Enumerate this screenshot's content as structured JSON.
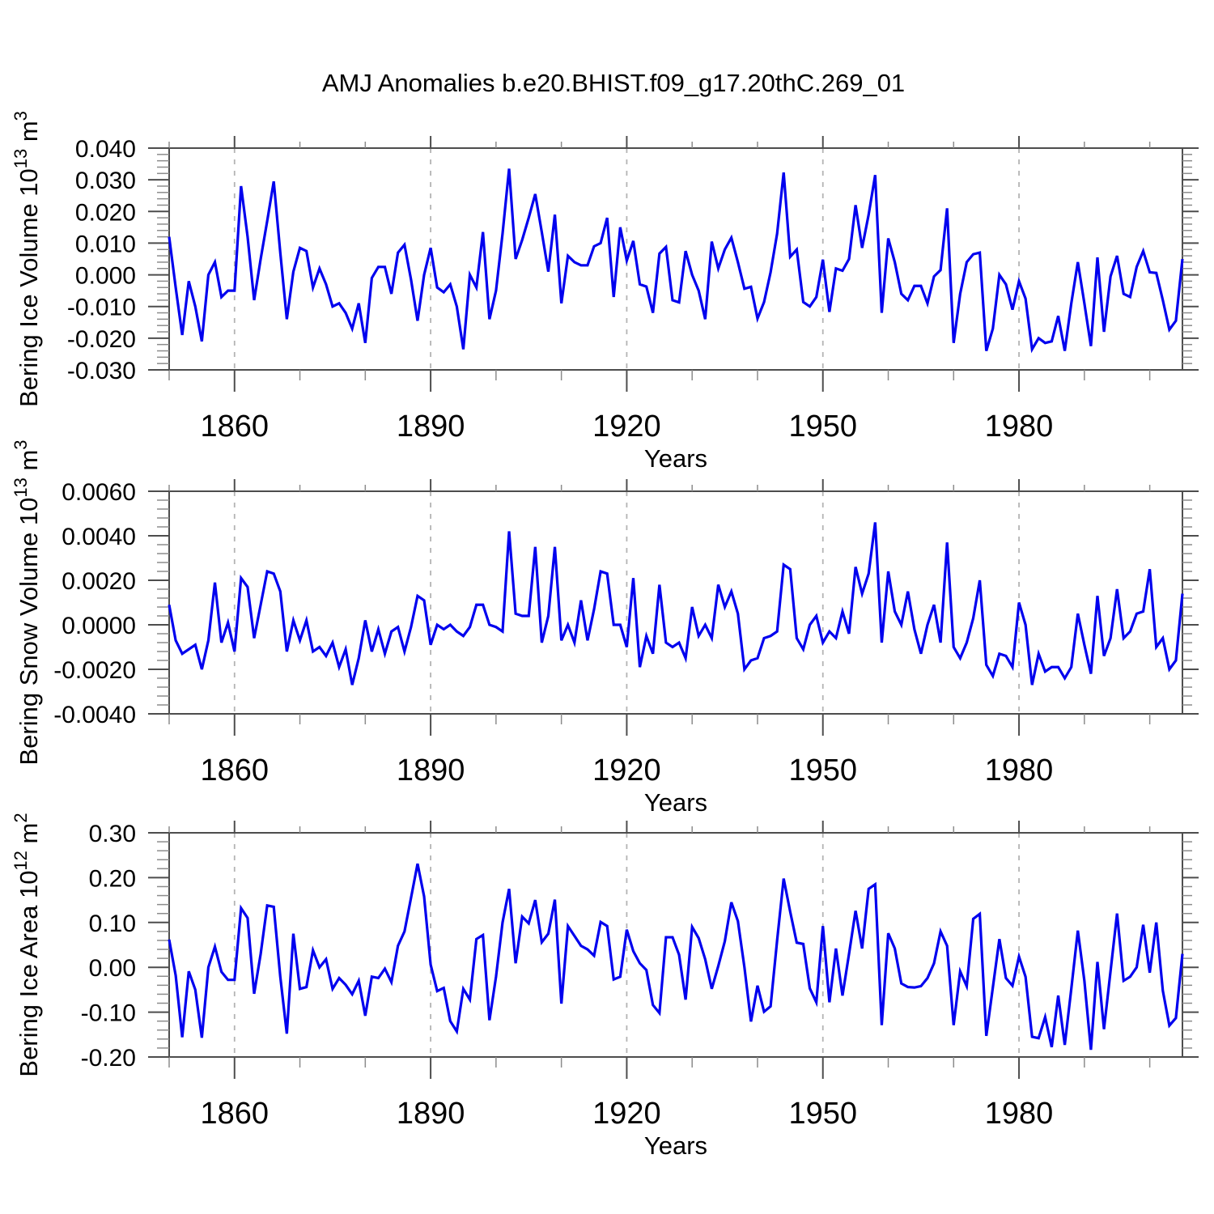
{
  "title": "AMJ Anomalies b.e20.BHIST.f09_g17.20thC.269_01",
  "style": {
    "background": "#FFFFFF",
    "line_color": "#0000EE",
    "grid_color": "#B4B4B4",
    "axis_color": "#4D4D4D",
    "minor_tick_color": "#8C8C8C",
    "text_color": "#000000"
  },
  "chart_data": [
    {
      "type": "line",
      "name": "bering-ice-volume",
      "title": "",
      "xlabel": "Years",
      "ylabel_text": "Bering Ice Volume 10^13 m^3",
      "ylabel_rich": {
        "prefix": "Bering Ice Volume 10",
        "exponent": "13",
        "unit": " m",
        "unit_exponent": "3"
      },
      "x_start": 1850,
      "x_end": 2005,
      "xticks_major": [
        1860,
        1890,
        1920,
        1950,
        1980
      ],
      "xtick_minor_step": 10,
      "ylim": [
        -0.03,
        0.04
      ],
      "ytick_major_step": 0.01,
      "ytick_minor_step": 0.002,
      "ytick_decimals": 3,
      "grid": "vertical-dashed-at-major-xticks",
      "legend": "none",
      "values": [
        0.012,
        -0.004,
        -0.019,
        -0.002,
        -0.01,
        -0.021,
        0.0,
        0.004,
        -0.007,
        -0.005,
        -0.005,
        0.028,
        0.012,
        -0.008,
        0.005,
        0.017,
        0.0295,
        0.007,
        -0.014,
        0.001,
        0.0085,
        0.0075,
        -0.004,
        0.002,
        -0.003,
        -0.01,
        -0.009,
        -0.012,
        -0.017,
        -0.009,
        -0.0215,
        -0.001,
        0.0025,
        0.0025,
        -0.006,
        0.007,
        0.0095,
        -0.0015,
        -0.0145,
        0.0,
        0.0085,
        -0.004,
        -0.0055,
        -0.003,
        -0.01,
        -0.0235,
        0.0,
        -0.004,
        0.0135,
        -0.014,
        -0.005,
        0.013,
        0.0335,
        0.005,
        0.011,
        0.018,
        0.0255,
        0.0135,
        0.001,
        0.019,
        -0.009,
        0.006,
        0.004,
        0.003,
        0.003,
        0.009,
        0.01,
        0.018,
        -0.007,
        0.015,
        0.0045,
        0.0107,
        -0.003,
        -0.0037,
        -0.012,
        0.0067,
        0.0088,
        -0.008,
        -0.0087,
        0.0075,
        0.0,
        -0.005,
        -0.014,
        0.0105,
        0.002,
        0.008,
        0.0117,
        0.004,
        -0.0044,
        -0.0038,
        -0.0138,
        -0.0086,
        0.0008,
        0.013,
        0.0323,
        0.0057,
        0.008,
        -0.0086,
        -0.01,
        -0.007,
        0.0048,
        -0.0117,
        0.002,
        0.0013,
        0.005,
        0.022,
        0.0085,
        0.019,
        0.0315,
        -0.012,
        0.0115,
        0.004,
        -0.006,
        -0.008,
        -0.0035,
        -0.0035,
        -0.009,
        -0.0005,
        0.0015,
        0.021,
        -0.0215,
        -0.006,
        0.004,
        0.0065,
        0.007,
        -0.024,
        -0.017,
        0.0,
        -0.003,
        -0.011,
        -0.002,
        -0.0075,
        -0.0235,
        -0.02,
        -0.0215,
        -0.021,
        -0.013,
        -0.024,
        -0.009,
        0.004,
        -0.009,
        -0.0225,
        0.0055,
        -0.018,
        -0.0005,
        0.006,
        -0.006,
        -0.007,
        0.0025,
        0.0075,
        0.0008,
        0.0006,
        -0.008,
        -0.0173,
        -0.0145,
        0.005
      ]
    },
    {
      "type": "line",
      "name": "bering-snow-volume",
      "title": "",
      "xlabel": "Years",
      "ylabel_text": "Bering Snow Volume 10^13 m^3",
      "ylabel_rich": {
        "prefix": "Bering Snow Volume 10",
        "exponent": "13",
        "unit": " m",
        "unit_exponent": "3"
      },
      "x_start": 1850,
      "x_end": 2005,
      "xticks_major": [
        1860,
        1890,
        1920,
        1950,
        1980
      ],
      "xtick_minor_step": 10,
      "ylim": [
        -0.004,
        0.006
      ],
      "ytick_major_step": 0.002,
      "ytick_minor_step": 0.0004,
      "ytick_decimals": 4,
      "grid": "vertical-dashed-at-major-xticks",
      "legend": "none",
      "values": [
        0.0009,
        -0.0007,
        -0.0013,
        -0.0011,
        -0.0009,
        -0.002,
        -0.0007,
        0.0019,
        -0.0008,
        0.0001,
        -0.0012,
        0.0021,
        0.0017,
        -0.0006,
        0.0009,
        0.0024,
        0.0023,
        0.0015,
        -0.0012,
        0.0002,
        -0.0007,
        0.0002,
        -0.0012,
        -0.001,
        -0.0014,
        -0.0008,
        -0.0019,
        -0.0011,
        -0.0027,
        -0.0015,
        0.0002,
        -0.0012,
        -0.0002,
        -0.0013,
        -0.0003,
        -0.0001,
        -0.0012,
        -0.0001,
        0.0013,
        0.0011,
        -0.0009,
        0.0,
        -0.0002,
        0.0,
        -0.0003,
        -0.0005,
        -0.0001,
        0.0009,
        0.0009,
        0.0,
        -0.0001,
        -0.0003,
        0.0042,
        0.0005,
        0.0004,
        0.0004,
        0.0035,
        -0.0008,
        0.0004,
        0.0035,
        -0.0007,
        0.0,
        -0.0008,
        0.0011,
        -0.0007,
        0.0007,
        0.0024,
        0.0023,
        0.0,
        0.0,
        -0.001,
        0.0021,
        -0.0019,
        -0.0005,
        -0.0013,
        0.0018,
        -0.0008,
        -0.001,
        -0.0008,
        -0.0015,
        0.0008,
        -0.0005,
        0.0,
        -0.0006,
        0.0018,
        0.0008,
        0.0015,
        0.0005,
        -0.002,
        -0.0016,
        -0.0015,
        -0.0006,
        -0.0005,
        -0.0003,
        0.0027,
        0.0025,
        -0.0006,
        -0.0011,
        0.0,
        0.0004,
        -0.0008,
        -0.0003,
        -0.0006,
        0.0006,
        -0.0004,
        0.0026,
        0.0014,
        0.0023,
        0.0046,
        -0.0008,
        0.0024,
        0.0006,
        0.0,
        0.0015,
        -0.0002,
        -0.0013,
        0.0,
        0.0009,
        -0.0008,
        0.0037,
        -0.001,
        -0.0015,
        -0.0008,
        0.0003,
        0.002,
        -0.0018,
        -0.0023,
        -0.0013,
        -0.0014,
        -0.0019,
        0.001,
        0.0,
        -0.0027,
        -0.0013,
        -0.0021,
        -0.0019,
        -0.0019,
        -0.0024,
        -0.0019,
        0.0005,
        -0.0009,
        -0.0022,
        0.0013,
        -0.0014,
        -0.0006,
        0.0016,
        -0.0006,
        -0.0003,
        0.0005,
        0.0006,
        0.0025,
        -0.001,
        -0.0006,
        -0.002,
        -0.0016,
        0.0014
      ]
    },
    {
      "type": "line",
      "name": "bering-ice-area",
      "title": "",
      "xlabel": "Years",
      "ylabel_text": "Bering Ice Area 10^12 m^2",
      "ylabel_rich": {
        "prefix": "Bering Ice Area 10",
        "exponent": "12",
        "unit": " m",
        "unit_exponent": "2"
      },
      "x_start": 1850,
      "x_end": 2005,
      "xticks_major": [
        1860,
        1890,
        1920,
        1950,
        1980
      ],
      "xtick_minor_step": 10,
      "ylim": [
        -0.2,
        0.3
      ],
      "ytick_major_step": 0.1,
      "ytick_minor_step": 0.02,
      "ytick_decimals": 2,
      "grid": "vertical-dashed-at-major-xticks",
      "legend": "none",
      "values": [
        0.062,
        -0.018,
        -0.156,
        -0.009,
        -0.05,
        -0.157,
        0.0,
        0.046,
        -0.01,
        -0.028,
        -0.028,
        0.132,
        0.11,
        -0.059,
        0.03,
        0.138,
        0.135,
        -0.021,
        -0.148,
        0.075,
        -0.048,
        -0.044,
        0.038,
        0.0,
        0.018,
        -0.048,
        -0.024,
        -0.039,
        -0.06,
        -0.03,
        -0.108,
        -0.021,
        -0.024,
        -0.003,
        -0.033,
        0.048,
        0.08,
        0.155,
        0.231,
        0.158,
        0.006,
        -0.053,
        -0.046,
        -0.12,
        -0.143,
        -0.048,
        -0.072,
        0.063,
        0.072,
        -0.118,
        -0.021,
        0.1,
        0.175,
        0.009,
        0.113,
        0.098,
        0.15,
        0.056,
        0.075,
        0.151,
        -0.081,
        0.092,
        0.07,
        0.048,
        0.04,
        0.026,
        0.101,
        0.092,
        -0.027,
        -0.021,
        0.084,
        0.036,
        0.009,
        -0.006,
        -0.084,
        -0.102,
        0.067,
        0.067,
        0.028,
        -0.072,
        0.09,
        0.065,
        0.018,
        -0.048,
        0.003,
        0.058,
        0.145,
        0.103,
        0.0,
        -0.121,
        -0.041,
        -0.099,
        -0.087,
        0.06,
        0.198,
        0.124,
        0.055,
        0.052,
        -0.047,
        -0.078,
        0.092,
        -0.078,
        0.042,
        -0.063,
        0.03,
        0.126,
        0.042,
        0.175,
        0.185,
        -0.129,
        0.076,
        0.042,
        -0.036,
        -0.044,
        -0.045,
        -0.042,
        -0.024,
        0.009,
        0.08,
        0.048,
        -0.129,
        -0.009,
        -0.042,
        0.108,
        0.119,
        -0.153,
        -0.045,
        0.063,
        -0.024,
        -0.041,
        0.024,
        -0.021,
        -0.155,
        -0.158,
        -0.111,
        -0.178,
        -0.063,
        -0.173,
        -0.048,
        0.082,
        -0.03,
        -0.184,
        0.012,
        -0.138,
        -0.009,
        0.12,
        -0.03,
        -0.021,
        0.0,
        0.095,
        -0.012,
        0.1,
        -0.052,
        -0.13,
        -0.113,
        0.03
      ]
    }
  ]
}
